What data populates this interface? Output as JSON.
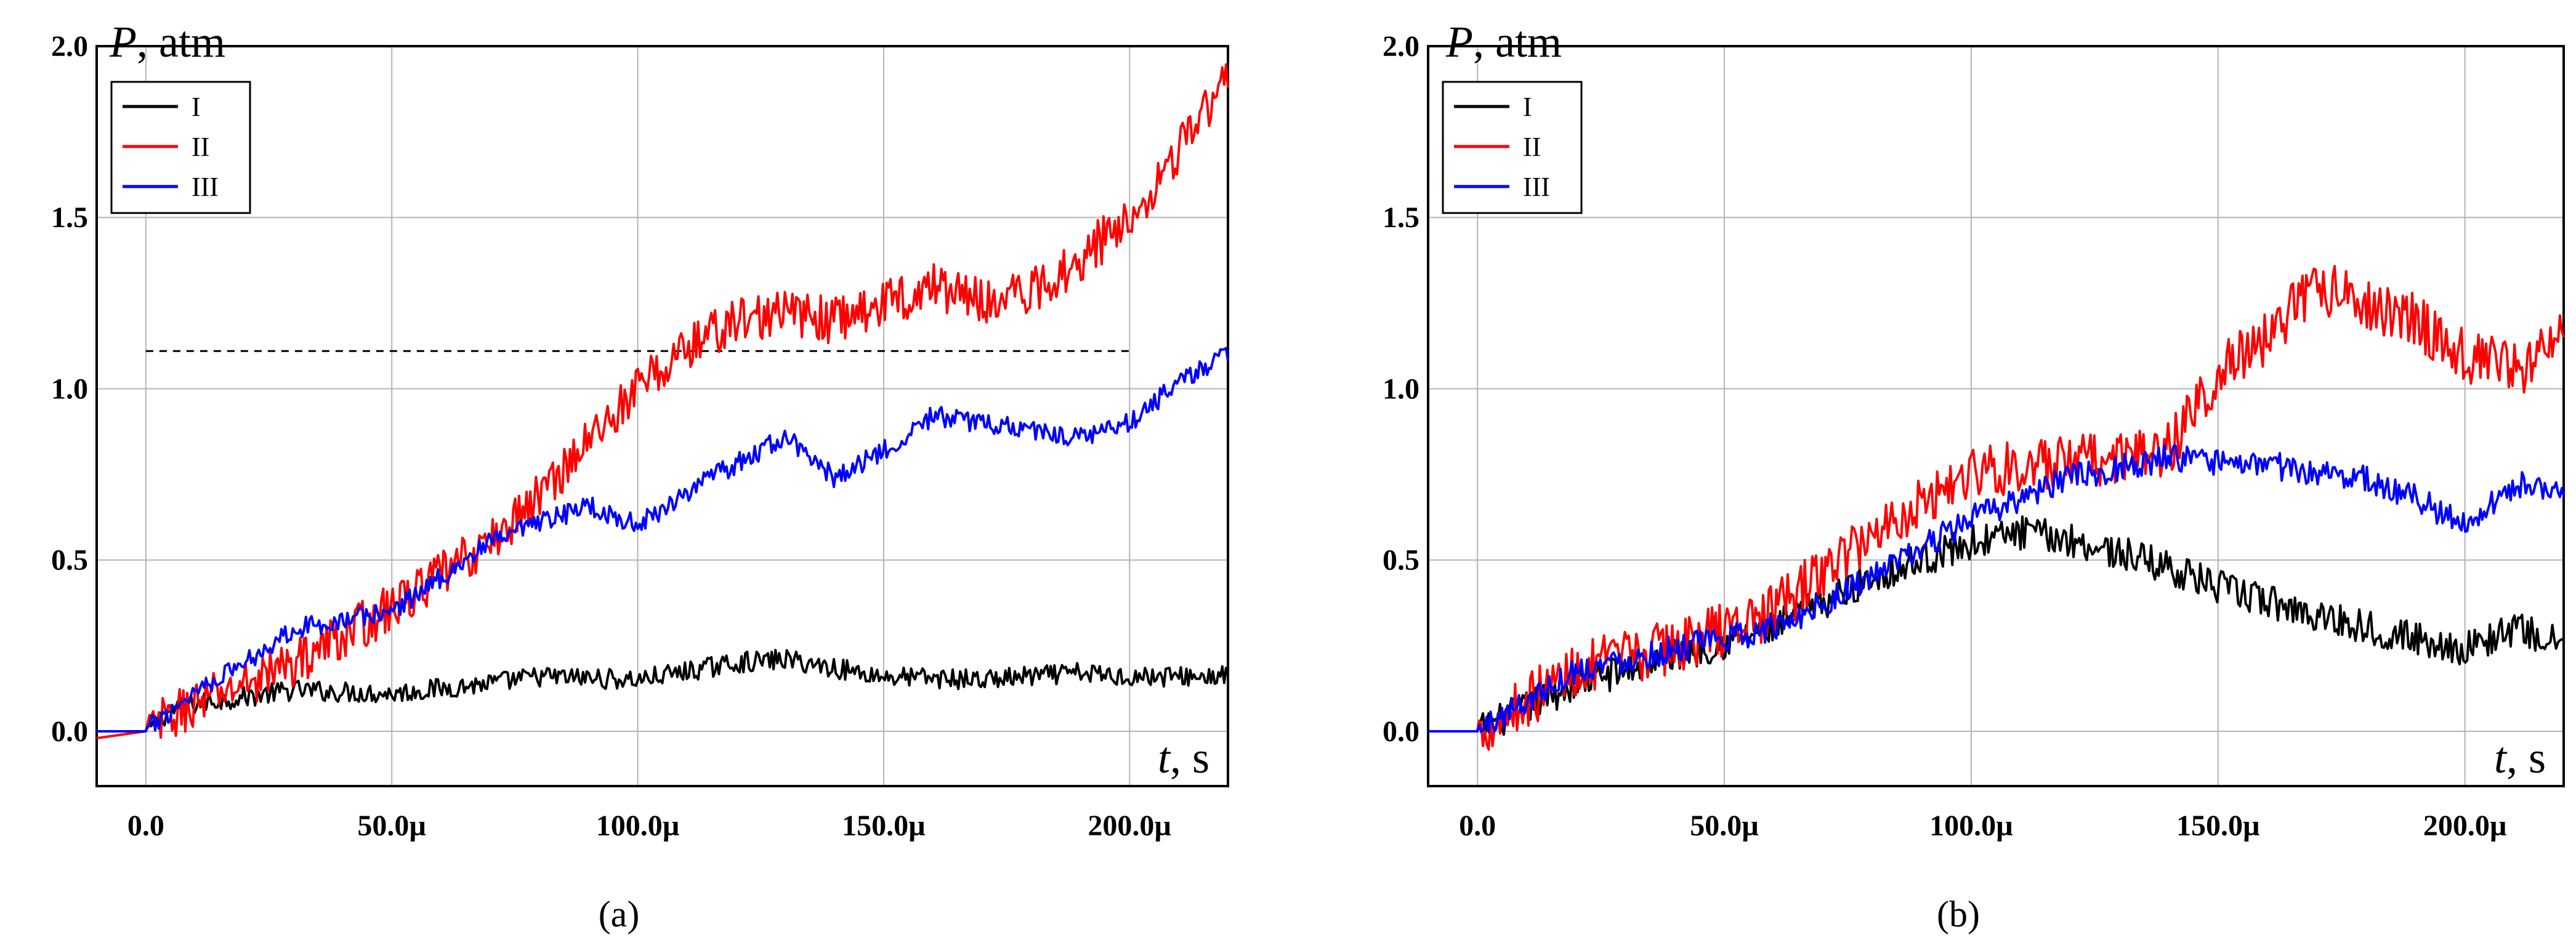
{
  "figure": {
    "panels": [
      {
        "caption": "(a)",
        "y_axis_var": "P",
        "y_axis_unit": ", atm",
        "x_axis_var": "t",
        "x_axis_unit": ", s"
      },
      {
        "caption": "(b)",
        "y_axis_var": "P",
        "y_axis_unit": ", atm",
        "x_axis_var": "t",
        "x_axis_unit": ", s"
      }
    ]
  },
  "chart_data": [
    {
      "type": "line",
      "panel": "a",
      "title": "",
      "xlabel": "t, s",
      "ylabel": "P, atm",
      "xlim": [
        -1e-05,
        0.00022
      ],
      "ylim": [
        -0.16,
        2.0
      ],
      "x_ticks": [
        0,
        5e-05,
        0.0001,
        0.00015,
        0.0002
      ],
      "x_tick_labels": [
        "0.0",
        "50.0µ",
        "100.0µ",
        "150.0µ",
        "200.0µ"
      ],
      "y_ticks": [
        0,
        0.5,
        1.0,
        1.5,
        2.0
      ],
      "y_tick_labels": [
        "0.0",
        "0.5",
        "1.0",
        "1.5",
        "2.0"
      ],
      "grid": true,
      "legend_position": "top-left",
      "reference_line": {
        "y": 1.11,
        "x_from": 0,
        "x_to": 0.0002,
        "style": "dashed"
      },
      "series": [
        {
          "name": "I",
          "color": "#000000",
          "x": [
            -1e-05,
            0,
            5e-06,
            1e-05,
            2e-05,
            3e-05,
            5e-05,
            7e-05,
            8e-05,
            0.0001,
            0.00012,
            0.00013,
            0.00015,
            0.00017,
            0.00019,
            0.0002,
            0.00022
          ],
          "y": [
            0.0,
            0.0,
            0.06,
            0.08,
            0.1,
            0.12,
            0.11,
            0.14,
            0.16,
            0.15,
            0.2,
            0.21,
            0.16,
            0.15,
            0.17,
            0.16,
            0.16
          ],
          "noise": 0.03
        },
        {
          "name": "II",
          "color": "#ff0000",
          "x": [
            -1e-05,
            0,
            1e-05,
            2e-05,
            3e-05,
            5e-05,
            7e-05,
            8e-05,
            9e-05,
            0.0001,
            0.00011,
            0.00012,
            0.00013,
            0.00014,
            0.00015,
            0.00016,
            0.00017,
            0.00018,
            0.00019,
            0.0002,
            0.00021,
            0.00022
          ],
          "y": [
            -0.02,
            0.0,
            0.08,
            0.14,
            0.2,
            0.36,
            0.55,
            0.69,
            0.85,
            1.0,
            1.12,
            1.2,
            1.22,
            1.2,
            1.25,
            1.3,
            1.26,
            1.28,
            1.38,
            1.5,
            1.7,
            1.9
          ],
          "noise": 0.07
        },
        {
          "name": "III",
          "color": "#0000ff",
          "x": [
            -1e-05,
            0,
            1e-05,
            2e-05,
            3e-05,
            5e-05,
            7e-05,
            9e-05,
            0.0001,
            0.00011,
            0.00012,
            0.00013,
            0.00014,
            0.00015,
            0.00016,
            0.00017,
            0.00019,
            0.0002,
            0.00021,
            0.00022
          ],
          "y": [
            0.0,
            0.0,
            0.12,
            0.2,
            0.3,
            0.35,
            0.55,
            0.66,
            0.6,
            0.7,
            0.78,
            0.86,
            0.74,
            0.82,
            0.92,
            0.9,
            0.86,
            0.9,
            1.02,
            1.1
          ],
          "noise": 0.03
        }
      ]
    },
    {
      "type": "line",
      "panel": "b",
      "title": "",
      "xlabel": "t, s",
      "ylabel": "P, atm",
      "xlim": [
        -1e-05,
        0.00022
      ],
      "ylim": [
        -0.16,
        2.0
      ],
      "x_ticks": [
        0,
        5e-05,
        0.0001,
        0.00015,
        0.0002
      ],
      "x_tick_labels": [
        "0.0",
        "50.0µ",
        "100.0µ",
        "150.0µ",
        "200.0µ"
      ],
      "y_ticks": [
        0,
        0.5,
        1.0,
        1.5,
        2.0
      ],
      "y_tick_labels": [
        "0.0",
        "0.5",
        "1.0",
        "1.5",
        "2.0"
      ],
      "grid": true,
      "legend_position": "top-left",
      "series": [
        {
          "name": "I",
          "color": "#000000",
          "x": [
            -1e-05,
            0,
            2e-05,
            4e-05,
            6e-05,
            8e-05,
            0.0001,
            0.00011,
            0.00012,
            0.00013,
            0.00014,
            0.00015,
            0.00017,
            0.00019,
            0.0002,
            0.00021,
            0.00022
          ],
          "y": [
            0.0,
            0.0,
            0.14,
            0.22,
            0.3,
            0.45,
            0.55,
            0.58,
            0.56,
            0.52,
            0.48,
            0.42,
            0.34,
            0.27,
            0.24,
            0.3,
            0.25
          ],
          "noise": 0.05
        },
        {
          "name": "II",
          "color": "#ff0000",
          "x": [
            -1e-05,
            0,
            2e-05,
            4e-05,
            6e-05,
            8e-05,
            0.0001,
            0.00012,
            0.00014,
            0.00015,
            0.00016,
            0.00017,
            0.00018,
            0.00019,
            0.0002,
            0.00021,
            0.00022
          ],
          "y": [
            0.0,
            0.0,
            0.18,
            0.25,
            0.35,
            0.58,
            0.76,
            0.78,
            0.82,
            1.05,
            1.15,
            1.3,
            1.25,
            1.2,
            1.1,
            1.05,
            1.15
          ],
          "noise": 0.08
        },
        {
          "name": "III",
          "color": "#0000ff",
          "x": [
            -1e-05,
            0,
            2e-05,
            4e-05,
            6e-05,
            8e-05,
            0.0001,
            0.00012,
            0.00014,
            0.00015,
            0.00016,
            0.00017,
            0.00018,
            0.00019,
            0.0002,
            0.00021,
            0.00022
          ],
          "y": [
            0.0,
            0.0,
            0.18,
            0.24,
            0.3,
            0.45,
            0.62,
            0.74,
            0.8,
            0.78,
            0.78,
            0.75,
            0.74,
            0.68,
            0.6,
            0.72,
            0.7
          ],
          "noise": 0.04
        }
      ]
    }
  ]
}
